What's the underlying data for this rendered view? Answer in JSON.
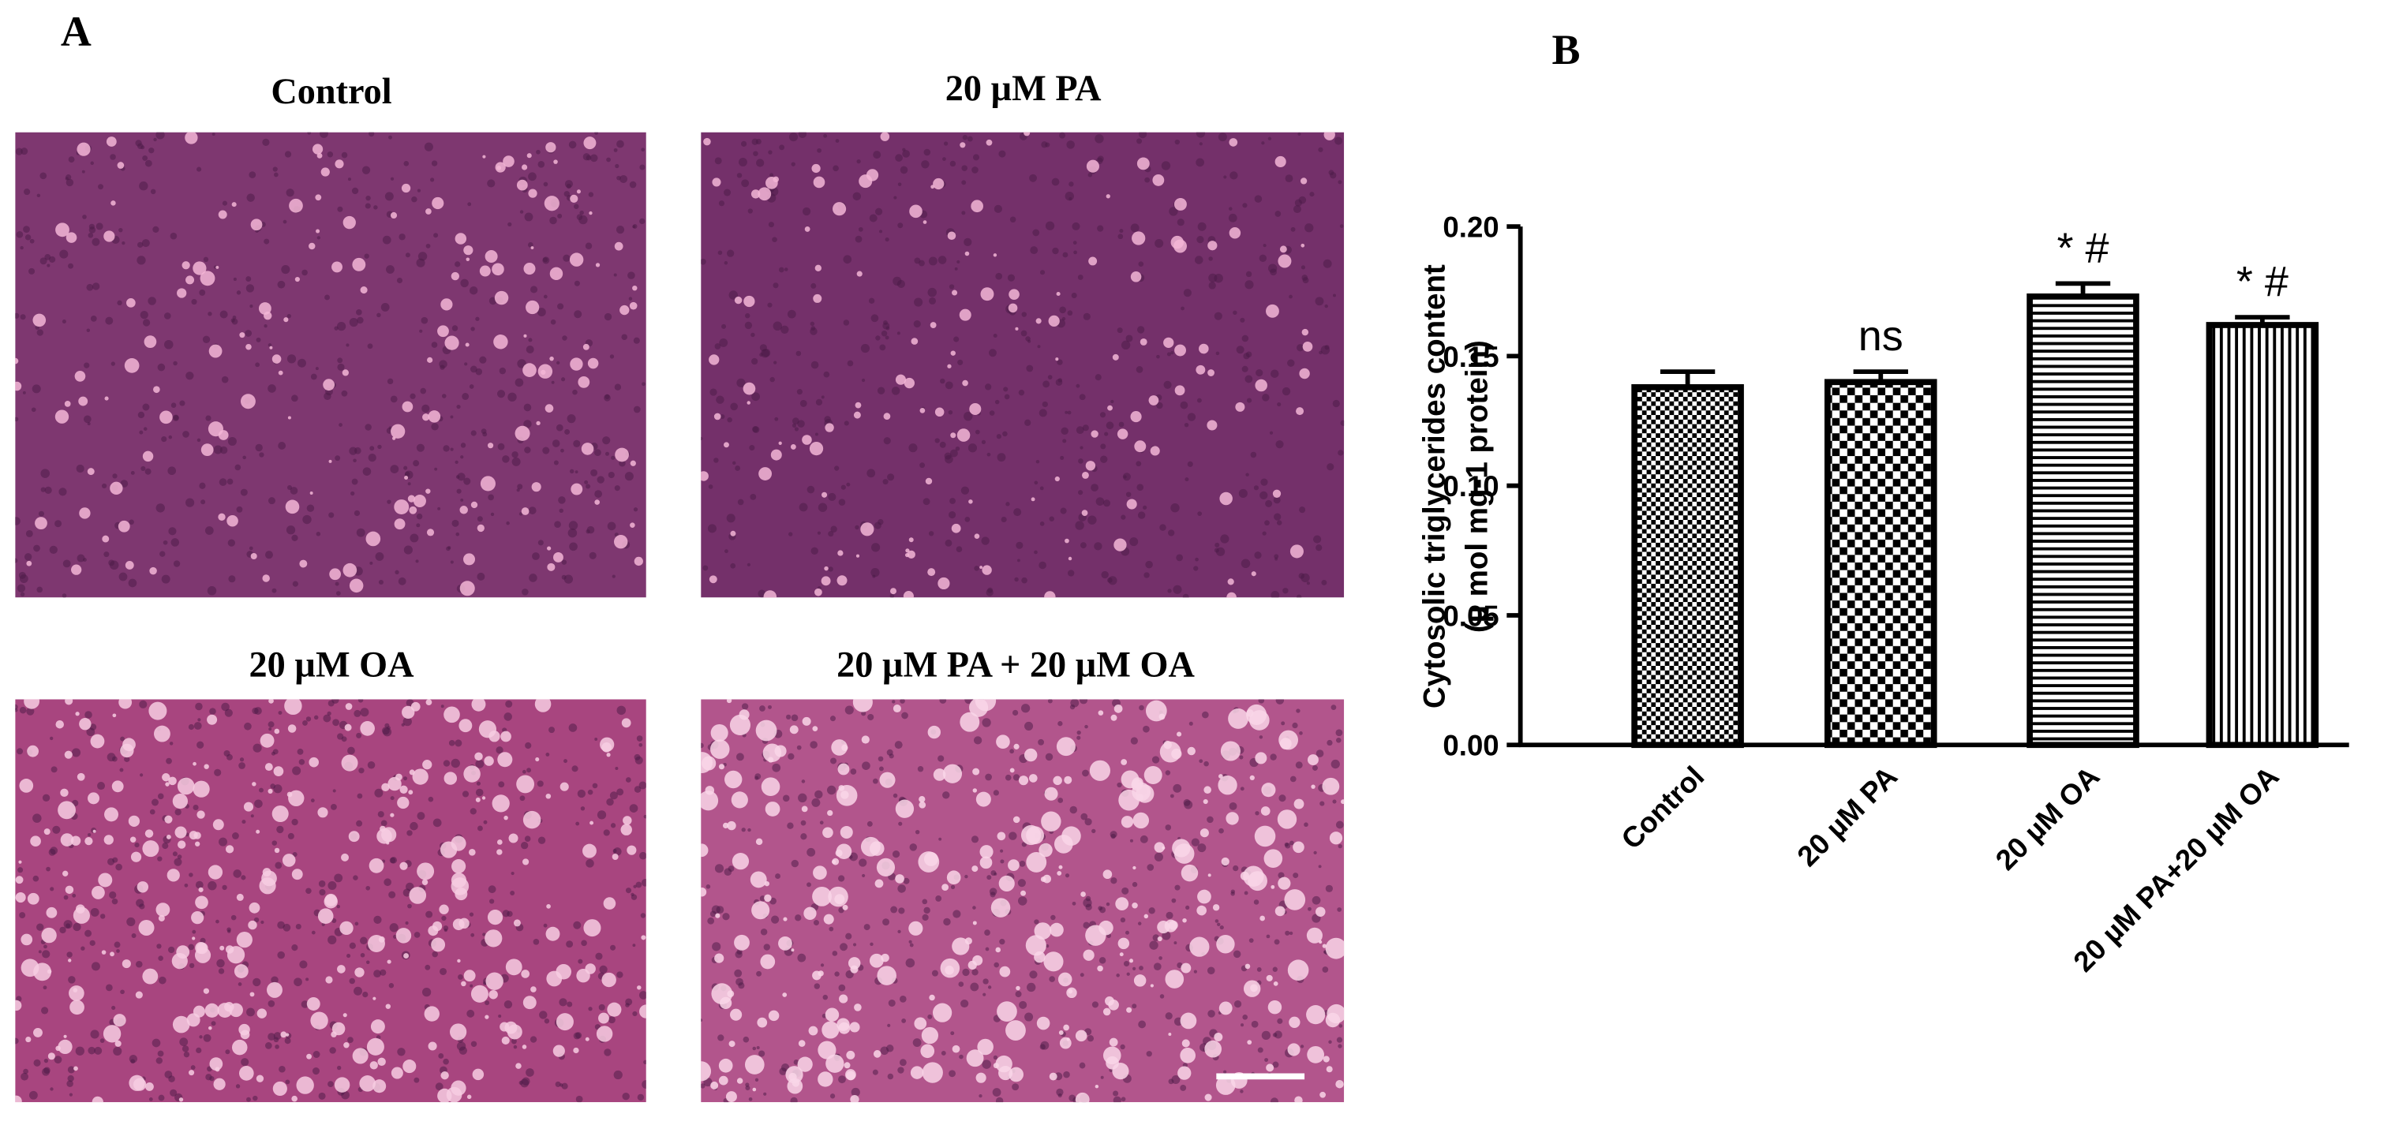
{
  "panel_a": {
    "label": "A",
    "images": [
      {
        "title": "Control"
      },
      {
        "title": "20 µM PA"
      },
      {
        "title": "20 µM OA"
      },
      {
        "title": "20 µM PA + 20 µM OA"
      }
    ]
  },
  "panel_b": {
    "label": "B"
  },
  "chart_data": {
    "type": "bar",
    "ylabel": [
      "Cytosolic triglycerides content",
      "(µ mol mg-1 protein)"
    ],
    "categories": [
      "Control",
      "20 µM PA",
      "20 µM OA",
      "20 µM PA+20 µM OA"
    ],
    "values": [
      0.138,
      0.14,
      0.173,
      0.162
    ],
    "errors": [
      0.006,
      0.004,
      0.005,
      0.003
    ],
    "significance": [
      null,
      "ns",
      "* #",
      "* #"
    ],
    "fill_patterns": [
      "checker-small",
      "checker-large",
      "horizontal",
      "vertical"
    ],
    "color": "#000000",
    "ylim": [
      0,
      0.2
    ],
    "yticks": [
      {
        "value": 0,
        "label": "0.00"
      },
      {
        "value": 0.05,
        "label": "0.05"
      },
      {
        "value": 0.1,
        "label": "0.10"
      },
      {
        "value": 0.15,
        "label": "0.15"
      },
      {
        "value": 0.2,
        "label": "0.20"
      }
    ]
  }
}
